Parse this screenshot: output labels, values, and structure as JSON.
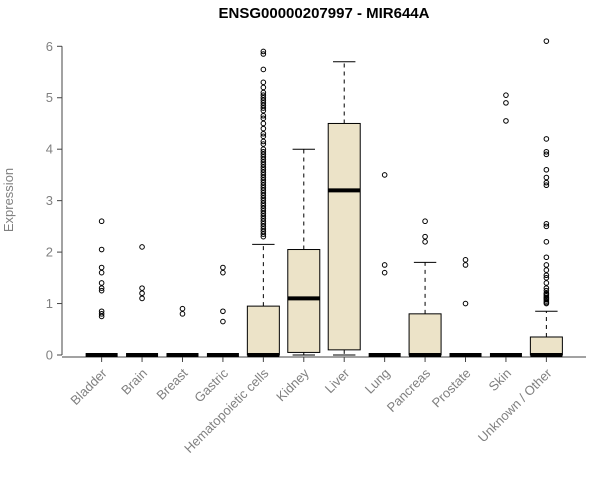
{
  "chart_data": {
    "type": "boxplot",
    "title": "ENSG00000207997 - MIR644A",
    "ylabel": "Expression",
    "xlabel": "",
    "ylim": [
      0,
      6.2
    ],
    "yticks": [
      0,
      1,
      2,
      3,
      4,
      5,
      6
    ],
    "grid": false,
    "legend": "none",
    "colors": {
      "box_fill": "#ece3c8",
      "box_stroke": "#000000",
      "median": "#000000",
      "whisker": "#000000",
      "outlier": "#000000",
      "axis": "#444444",
      "labels": "#808080",
      "title": "#000000",
      "background": "#ffffff"
    },
    "categories": [
      "Bladder",
      "Brain",
      "Breast",
      "Gastric",
      "Hematopoietic cells",
      "Kidney",
      "Liver",
      "Lung",
      "Pancreas",
      "Prostate",
      "Skin",
      "Unknown / Other"
    ],
    "series": [
      {
        "category": "Bladder",
        "stats": {
          "whisker_low": 0,
          "q1": 0,
          "median": 0,
          "q3": 0,
          "whisker_high": 0
        },
        "outliers": [
          0.75,
          0.8,
          0.85,
          1.25,
          1.3,
          1.4,
          1.6,
          1.7,
          2.05,
          2.6
        ]
      },
      {
        "category": "Brain",
        "stats": {
          "whisker_low": 0,
          "q1": 0,
          "median": 0,
          "q3": 0,
          "whisker_high": 0
        },
        "outliers": [
          1.1,
          1.2,
          1.3,
          2.1
        ]
      },
      {
        "category": "Breast",
        "stats": {
          "whisker_low": 0,
          "q1": 0,
          "median": 0,
          "q3": 0,
          "whisker_high": 0
        },
        "outliers": [
          0.8,
          0.9
        ]
      },
      {
        "category": "Gastric",
        "stats": {
          "whisker_low": 0,
          "q1": 0,
          "median": 0,
          "q3": 0,
          "whisker_high": 0
        },
        "outliers": [
          0.65,
          0.85,
          1.6,
          1.7
        ]
      },
      {
        "category": "Hematopoietic cells",
        "stats": {
          "whisker_low": 0,
          "q1": 0,
          "median": 0,
          "q3": 0.95,
          "whisker_high": 2.15
        },
        "outliers": [
          2.3,
          2.35,
          2.4,
          2.45,
          2.5,
          2.55,
          2.6,
          2.65,
          2.7,
          2.75,
          2.8,
          2.85,
          2.9,
          2.95,
          3.0,
          3.05,
          3.1,
          3.15,
          3.2,
          3.25,
          3.3,
          3.35,
          3.4,
          3.45,
          3.5,
          3.55,
          3.6,
          3.65,
          3.7,
          3.75,
          3.8,
          3.85,
          3.9,
          3.95,
          4.0,
          4.1,
          4.15,
          4.25,
          4.3,
          4.4,
          4.5,
          4.6,
          4.65,
          4.75,
          4.8,
          4.85,
          4.9,
          4.95,
          5.0,
          5.05,
          5.1,
          5.2,
          5.3,
          5.55,
          5.85,
          5.9
        ]
      },
      {
        "category": "Kidney",
        "stats": {
          "whisker_low": 0,
          "q1": 0.05,
          "median": 1.1,
          "q3": 2.05,
          "whisker_high": 4.0
        },
        "outliers": []
      },
      {
        "category": "Liver",
        "stats": {
          "whisker_low": 0,
          "q1": 0.1,
          "median": 3.2,
          "q3": 4.5,
          "whisker_high": 5.7
        },
        "outliers": []
      },
      {
        "category": "Lung",
        "stats": {
          "whisker_low": 0,
          "q1": 0,
          "median": 0,
          "q3": 0,
          "whisker_high": 0
        },
        "outliers": [
          1.6,
          1.75,
          3.5
        ]
      },
      {
        "category": "Pancreas",
        "stats": {
          "whisker_low": 0,
          "q1": 0,
          "median": 0,
          "q3": 0.8,
          "whisker_high": 1.8
        },
        "outliers": [
          2.2,
          2.3,
          2.6
        ]
      },
      {
        "category": "Prostate",
        "stats": {
          "whisker_low": 0,
          "q1": 0,
          "median": 0,
          "q3": 0,
          "whisker_high": 0
        },
        "outliers": [
          1.0,
          1.75,
          1.85
        ]
      },
      {
        "category": "Skin",
        "stats": {
          "whisker_low": 0,
          "q1": 0,
          "median": 0,
          "q3": 0,
          "whisker_high": 0
        },
        "outliers": [
          4.55,
          4.9,
          5.05
        ]
      },
      {
        "category": "Unknown / Other",
        "stats": {
          "whisker_low": 0,
          "q1": 0,
          "median": 0,
          "q3": 0.35,
          "whisker_high": 0.85
        },
        "outliers": [
          1.0,
          1.02,
          1.05,
          1.08,
          1.1,
          1.12,
          1.15,
          1.18,
          1.2,
          1.25,
          1.3,
          1.4,
          1.5,
          1.55,
          1.65,
          1.75,
          1.9,
          2.2,
          2.5,
          2.55,
          3.3,
          3.35,
          3.45,
          3.6,
          3.9,
          3.95,
          4.2,
          6.1
        ]
      }
    ]
  }
}
